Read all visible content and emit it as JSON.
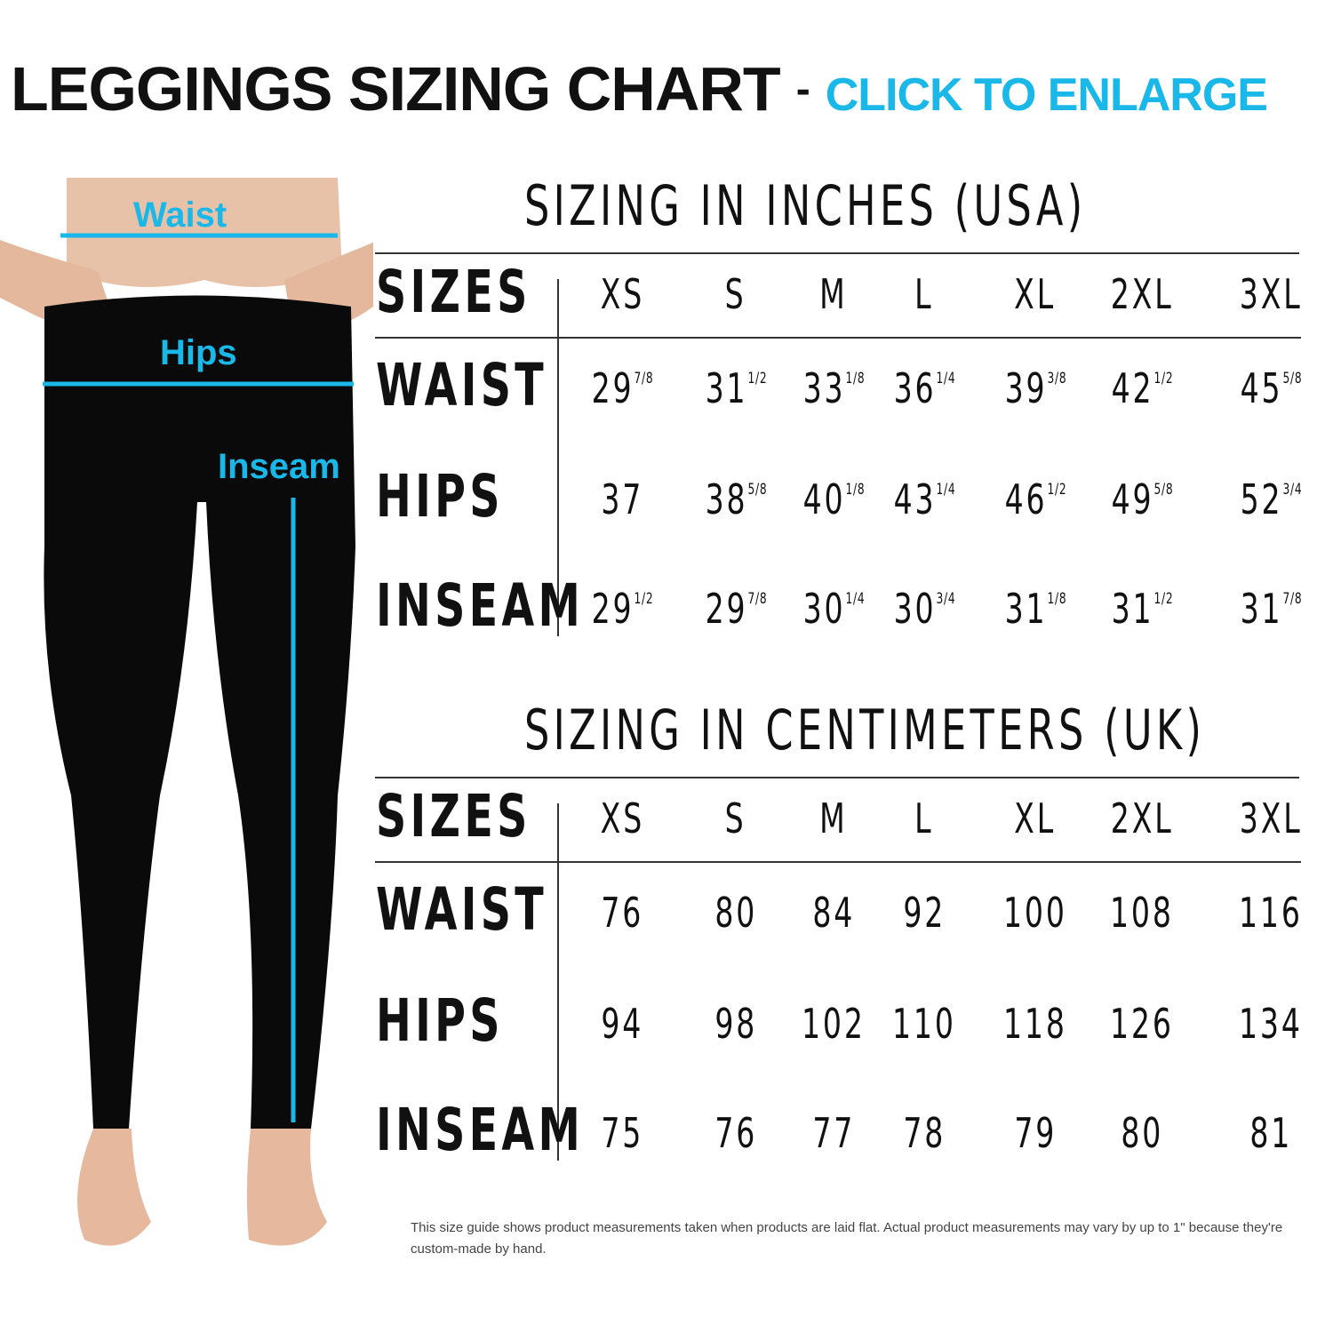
{
  "header": {
    "title": "LEGGINGS SIZING CHART",
    "separator": "-",
    "cta": "CLICK TO ENLARGE"
  },
  "colors": {
    "accent": "#1ab8e8",
    "text": "#111111"
  },
  "figure": {
    "labels": {
      "waist": "Waist",
      "hips": "Hips",
      "inseam": "Inseam"
    }
  },
  "sizes": [
    "XS",
    "S",
    "M",
    "L",
    "XL",
    "2XL",
    "3XL"
  ],
  "sizes_label": "SIZES",
  "inches": {
    "heading": "SIZING IN INCHES (USA)",
    "rows": [
      {
        "label": "WAIST",
        "values": [
          [
            "29",
            "7/8"
          ],
          [
            "31",
            "1/2"
          ],
          [
            "33",
            "1/8"
          ],
          [
            "36",
            "1/4"
          ],
          [
            "39",
            "3/8"
          ],
          [
            "42",
            "1/2"
          ],
          [
            "45",
            "5/8"
          ]
        ]
      },
      {
        "label": "HIPS",
        "values": [
          [
            "37",
            ""
          ],
          [
            "38",
            "5/8"
          ],
          [
            "40",
            "1/8"
          ],
          [
            "43",
            "1/4"
          ],
          [
            "46",
            "1/2"
          ],
          [
            "49",
            "5/8"
          ],
          [
            "52",
            "3/4"
          ]
        ]
      },
      {
        "label": "INSEAM",
        "values": [
          [
            "29",
            "1/2"
          ],
          [
            "29",
            "7/8"
          ],
          [
            "30",
            "1/4"
          ],
          [
            "30",
            "3/4"
          ],
          [
            "31",
            "1/8"
          ],
          [
            "31",
            "1/2"
          ],
          [
            "31",
            "7/8"
          ]
        ]
      }
    ]
  },
  "cm": {
    "heading": "SIZING IN CENTIMETERS (UK)",
    "rows": [
      {
        "label": "WAIST",
        "values": [
          [
            "76",
            ""
          ],
          [
            "80",
            ""
          ],
          [
            "84",
            ""
          ],
          [
            "92",
            ""
          ],
          [
            "100",
            ""
          ],
          [
            "108",
            ""
          ],
          [
            "116",
            ""
          ]
        ]
      },
      {
        "label": "HIPS",
        "values": [
          [
            "94",
            ""
          ],
          [
            "98",
            ""
          ],
          [
            "102",
            ""
          ],
          [
            "110",
            ""
          ],
          [
            "118",
            ""
          ],
          [
            "126",
            ""
          ],
          [
            "134",
            ""
          ]
        ]
      },
      {
        "label": "INSEAM",
        "values": [
          [
            "75",
            ""
          ],
          [
            "76",
            ""
          ],
          [
            "77",
            ""
          ],
          [
            "78",
            ""
          ],
          [
            "79",
            ""
          ],
          [
            "80",
            ""
          ],
          [
            "81",
            ""
          ]
        ]
      }
    ]
  },
  "note": "This size guide shows product measurements taken when products are laid flat. Actual product measurements may vary by up to 1\" because they're custom-made by hand."
}
